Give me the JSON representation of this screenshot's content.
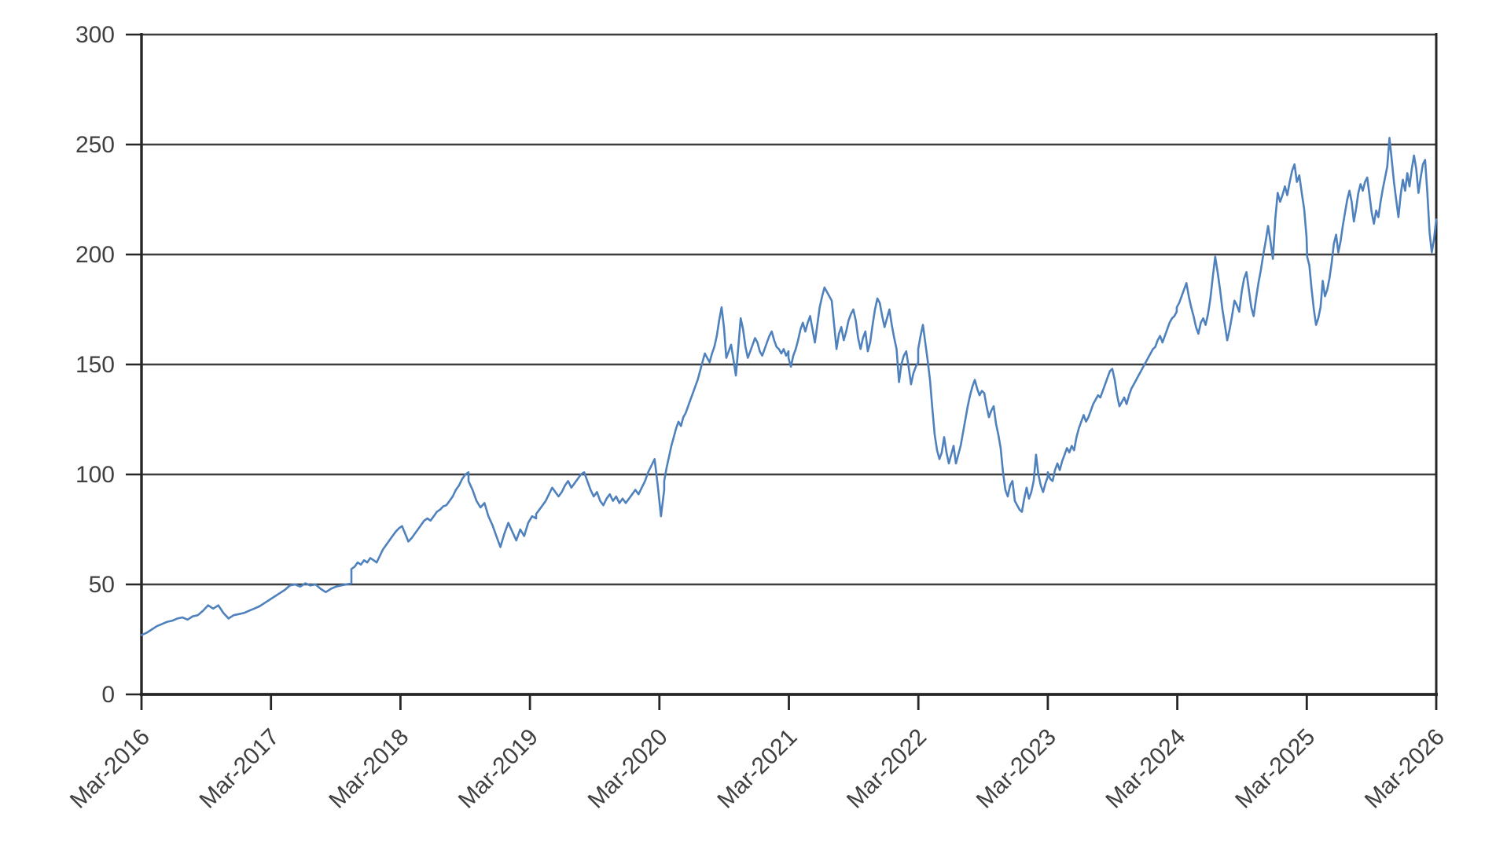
{
  "chart_data": {
    "type": "line",
    "title": "",
    "legend": "none",
    "grid": "horizontal",
    "x_axis": {
      "tick_labels": [
        "Mar-2016",
        "Mar-2017",
        "Mar-2018",
        "Mar-2019",
        "Mar-2020",
        "Mar-2021",
        "Mar-2022",
        "Mar-2023",
        "Mar-2024",
        "Mar-2025",
        "Mar-2026"
      ],
      "span_years": 10,
      "label_rotation_deg": -45
    },
    "y_axis": {
      "min": 0,
      "max": 300,
      "step": 50,
      "tick_labels": [
        "0",
        "50",
        "100",
        "150",
        "200",
        "250",
        "300"
      ]
    },
    "series": [
      {
        "color": "#4f81bd",
        "stroke_width": 2.6,
        "unit_t": "years since Mar-2016",
        "segments": [
          {
            "t_start": 0.0,
            "t_end": 1.621,
            "values": [
              27,
              28,
              29.5,
              31,
              32,
              33,
              33.5,
              34.5,
              35,
              34,
              35.5,
              36,
              38,
              40.5,
              39,
              40.5,
              37,
              34.5,
              36,
              36.5,
              37,
              38,
              39,
              40,
              41.5,
              43,
              44.5,
              46,
              47.5,
              49.5,
              50,
              49,
              50.5,
              49.5,
              50,
              48,
              46.5,
              48,
              49,
              49.5,
              50,
              50.5
            ]
          },
          {
            "t_start": 1.621,
            "t_end": 2.526,
            "values": [
              57,
              58,
              60,
              59,
              61,
              60,
              62,
              61,
              60,
              63,
              66,
              68,
              70,
              72,
              74,
              75.5,
              76.5,
              73,
              69.5,
              71,
              73,
              75,
              77,
              79,
              80,
              79,
              81,
              83,
              84,
              85.5,
              86,
              88,
              90,
              93,
              95,
              98,
              100,
              101
            ]
          },
          {
            "t_start": 2.526,
            "t_end": 3.048,
            "values": [
              97,
              93,
              88,
              85,
              87,
              81,
              77,
              72,
              67,
              73,
              78,
              74,
              70,
              75,
              72,
              78,
              81,
              80
            ]
          },
          {
            "t_start": 3.048,
            "t_end": 4.037,
            "values": [
              82,
              84,
              86,
              88,
              91,
              94,
              92,
              90,
              92,
              95,
              97,
              94,
              96,
              98,
              100,
              101,
              97,
              93,
              90,
              92,
              88,
              86,
              89,
              91,
              88,
              90,
              87,
              89,
              87,
              89,
              91,
              93,
              91,
              94,
              97,
              101,
              104,
              107,
              95,
              81,
              93
            ]
          },
          {
            "t_start": 4.037,
            "t_end": 4.997,
            "values": [
              97,
              103,
              108,
              113,
              117,
              121,
              124,
              122,
              126,
              128,
              131,
              134,
              137,
              140,
              143,
              147,
              151,
              155,
              153,
              151,
              155,
              158,
              163,
              170,
              176,
              167,
              153,
              156,
              159,
              152,
              145,
              158,
              171,
              166,
              158,
              153,
              156,
              159,
              162,
              160,
              156,
              154,
              157,
              160,
              163,
              165,
              161,
              158,
              157,
              155,
              157,
              154,
              156
            ]
          },
          {
            "t_start": 4.997,
            "t_end": 5.999,
            "values": [
              153,
              149,
              154,
              157,
              161,
              166,
              169,
              165,
              169,
              172,
              166,
              160,
              168,
              176,
              181,
              185,
              183,
              181,
              179,
              168,
              157,
              164,
              167,
              161,
              165,
              170,
              173,
              175,
              170,
              162,
              157,
              162,
              165,
              156,
              160,
              168,
              175,
              180,
              178,
              172,
              167,
              171,
              175,
              168,
              162,
              157,
              142,
              150,
              154,
              156,
              149,
              141,
              146,
              149,
              151
            ]
          },
          {
            "t_start": 5.999,
            "t_end": 7.0,
            "values": [
              157,
              163,
              168,
              160,
              152,
              143,
              130,
              118,
              111,
              107,
              110,
              117,
              110,
              105,
              109,
              113,
              105,
              109,
              113,
              119,
              125,
              131,
              136,
              140,
              143,
              139,
              136,
              138,
              137,
              131,
              126,
              129,
              131,
              123,
              118,
              112,
              101,
              93,
              90,
              95,
              97,
              88,
              86,
              84,
              83,
              89,
              94,
              89,
              92,
              97,
              109,
              100,
              95,
              92,
              96,
              99
            ]
          },
          {
            "t_start": 7.0,
            "t_end": 7.996,
            "values": [
              101,
              98,
              97,
              102,
              105,
              102,
              106,
              109,
              112,
              110,
              113,
              111,
              117,
              121,
              124,
              127,
              124,
              126,
              129,
              132,
              134,
              136,
              135,
              138,
              141,
              144,
              147,
              148,
              143,
              136,
              131,
              133,
              135,
              132,
              136,
              139,
              141,
              143,
              145,
              147,
              149,
              151,
              153,
              155,
              157,
              158,
              161,
              163,
              160,
              163,
              166,
              169,
              171,
              172,
              174
            ]
          },
          {
            "t_start": 7.996,
            "t_end": 8.998,
            "values": [
              176,
              178,
              181,
              184,
              187,
              181,
              176,
              172,
              167,
              164,
              169,
              171,
              168,
              173,
              180,
              190,
              199,
              192,
              184,
              175,
              168,
              161,
              166,
              172,
              179,
              177,
              174,
              183,
              189,
              192,
              184,
              176,
              172,
              180,
              187,
              193,
              200,
              206,
              213,
              206,
              198,
              216,
              228,
              224,
              227,
              231,
              227,
              233,
              238,
              241,
              233,
              236,
              228,
              221,
              208
            ]
          },
          {
            "t_start": 9.003,
            "t_end": 10.0,
            "values": [
              199,
              195,
              184,
              175,
              168,
              171,
              176,
              188,
              181,
              184,
              189,
              196,
              205,
              209,
              201,
              206,
              213,
              219,
              225,
              229,
              224,
              215,
              221,
              228,
              232,
              229,
              233,
              235,
              227,
              219,
              214,
              220,
              217,
              224,
              230,
              235,
              240,
              253,
              243,
              233,
              225,
              217,
              227,
              234,
              229,
              237,
              231,
              239,
              245,
              239,
              228,
              235,
              241,
              243,
              228,
              210,
              201,
              207,
              216
            ]
          }
        ]
      }
    ]
  },
  "colors": {
    "background": "#ffffff",
    "axis": "#262626",
    "grid": "#3d3d3d",
    "tick_text": "#404040",
    "series": "#4f81bd"
  }
}
